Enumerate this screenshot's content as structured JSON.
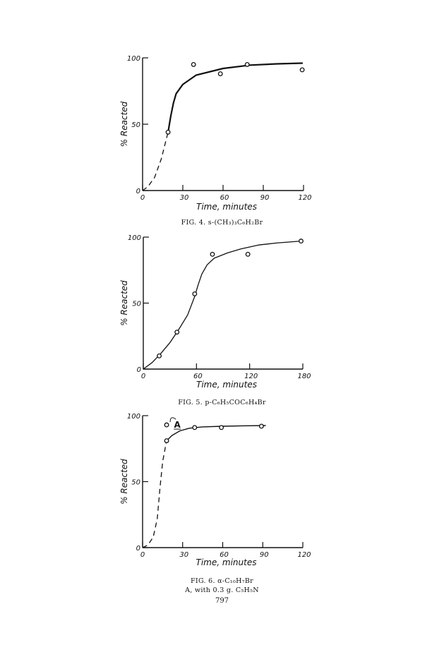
{
  "page_number": "797",
  "chart_data": [
    {
      "type": "line",
      "caption": "FIG. 4. s-(CH₃)₃C₆H₂Br",
      "xlabel": "Time, minutes",
      "ylabel": "% Reacted",
      "xlim": [
        0,
        120
      ],
      "ylim": [
        0,
        100
      ],
      "x_ticks": [
        "0",
        "30",
        "60",
        "90",
        "120"
      ],
      "y_ticks": [
        "0",
        "50",
        "100"
      ],
      "grid": false,
      "points": [
        {
          "x": 19,
          "y": 44
        },
        {
          "x": 38,
          "y": 95
        },
        {
          "x": 58,
          "y": 88
        },
        {
          "x": 78,
          "y": 95
        },
        {
          "x": 119,
          "y": 91
        }
      ],
      "curve_dashed": [
        [
          0,
          0
        ],
        [
          4,
          3
        ],
        [
          9,
          10
        ],
        [
          14,
          24
        ],
        [
          18,
          40
        ],
        [
          19,
          44
        ]
      ],
      "curve_solid": [
        [
          19,
          44
        ],
        [
          21,
          56
        ],
        [
          23,
          66
        ],
        [
          25,
          73
        ],
        [
          30,
          80
        ],
        [
          40,
          87
        ],
        [
          60,
          92
        ],
        [
          80,
          94.5
        ],
        [
          100,
          95.5
        ],
        [
          119,
          96
        ]
      ],
      "annotations": []
    },
    {
      "type": "line",
      "caption": "FIG. 5. p-C₆H₅COC₆H₄Br",
      "xlabel": "Time, minutes",
      "ylabel": "% Reacted",
      "xlim": [
        0,
        180
      ],
      "ylim": [
        0,
        100
      ],
      "x_ticks": [
        "0",
        "60",
        "120",
        "180"
      ],
      "y_ticks": [
        "0",
        "50",
        "100"
      ],
      "grid": false,
      "points": [
        {
          "x": 18,
          "y": 10
        },
        {
          "x": 38,
          "y": 28
        },
        {
          "x": 58,
          "y": 57
        },
        {
          "x": 78,
          "y": 87
        },
        {
          "x": 118,
          "y": 87
        },
        {
          "x": 178,
          "y": 97
        }
      ],
      "curve_dashed": [],
      "curve_solid": [
        [
          0,
          0
        ],
        [
          10,
          5
        ],
        [
          20,
          12
        ],
        [
          30,
          20
        ],
        [
          40,
          30
        ],
        [
          50,
          41
        ],
        [
          58,
          55
        ],
        [
          62,
          64
        ],
        [
          66,
          72
        ],
        [
          72,
          79
        ],
        [
          80,
          84
        ],
        [
          95,
          88
        ],
        [
          110,
          91
        ],
        [
          130,
          94
        ],
        [
          150,
          95.5
        ],
        [
          178,
          97
        ]
      ],
      "annotations": []
    },
    {
      "type": "line",
      "caption": "FIG. 6. α-C₁₀H₇Br",
      "caption2": "A, with 0.3 g. C₅H₅N",
      "xlabel": "Time, minutes",
      "ylabel": "% Reacted",
      "xlim": [
        0,
        120
      ],
      "ylim": [
        0,
        100
      ],
      "x_ticks": [
        "0",
        "30",
        "60",
        "90",
        "120"
      ],
      "y_ticks": [
        "0",
        "50",
        "100"
      ],
      "grid": false,
      "points": [
        {
          "x": 18,
          "y": 81
        },
        {
          "x": 18,
          "y": 93
        },
        {
          "x": 39,
          "y": 91
        },
        {
          "x": 59,
          "y": 91
        },
        {
          "x": 89,
          "y": 92
        }
      ],
      "curve_dashed": [
        [
          0,
          0
        ],
        [
          4,
          2
        ],
        [
          8,
          8
        ],
        [
          11,
          22
        ],
        [
          13,
          45
        ],
        [
          15,
          65
        ],
        [
          17,
          76
        ],
        [
          18,
          81
        ]
      ],
      "curve_solid": [
        [
          18,
          81
        ],
        [
          22,
          85
        ],
        [
          28,
          88.5
        ],
        [
          35,
          90.5
        ],
        [
          45,
          91.5
        ],
        [
          60,
          92
        ],
        [
          75,
          92.3
        ],
        [
          92,
          92.5
        ]
      ],
      "annotations": [
        {
          "text": "A",
          "x": 26,
          "y": 93
        }
      ]
    }
  ]
}
